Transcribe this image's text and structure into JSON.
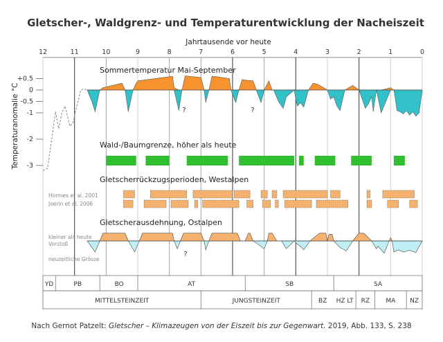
{
  "chart_data": {
    "type": "area",
    "title": "Gletscher-, Waldgrenz- und Temperaturentwicklung der Nacheiszeit",
    "xlabel": "Jahrtausende vor heute",
    "ylabel": "Temperaturanomalie °C",
    "xlim": [
      12,
      0
    ],
    "x_ticks": [
      "12",
      "11",
      "10",
      "9",
      "8",
      "7",
      "6",
      "5",
      "4",
      "3",
      "2",
      "1",
      "0"
    ],
    "y_ticks": [
      "+0.5",
      "0",
      "-0.5",
      "-1",
      "-2",
      "-3"
    ],
    "y_tick_values": [
      0.5,
      0,
      -0.5,
      -1,
      -2,
      -3
    ],
    "colors": {
      "warm": "#f7922f",
      "cold": "#33c1c9",
      "forest": "#2fbf2f",
      "retreat": "#f5b26e",
      "cold_light": "#bfeff5",
      "grid": "#bbbbbb",
      "dark": "#333333"
    },
    "panels": {
      "temperature": "Sommertemperatur Mai-September",
      "treeline": "Wald-/Baumgrenze, höher als heute",
      "retreat_west": "Gletscherrückzugsperioden, Westalpen",
      "extension_east": "Gletscherausdehnung, Ostalpen"
    },
    "retreat_sources": [
      "Hormes et al. 2001",
      "Joerin et al. 2006"
    ],
    "extension_labels": [
      "kleiner als heute",
      "Vorstoß",
      "neuzeitliche Grösse"
    ],
    "question_mark": "?",
    "temperature_series": {
      "name": "Sommertemperatur",
      "x": [
        10.6,
        10.45,
        10.35,
        10.2,
        10.1,
        9.5,
        9.4,
        9.3,
        9.15,
        9.05,
        9.0,
        7.9,
        7.85,
        7.7,
        7.6,
        7.5,
        7.0,
        6.9,
        6.85,
        6.75,
        6.65,
        6.5,
        6.1,
        6.05,
        5.9,
        5.8,
        5.7,
        5.35,
        5.25,
        5.1,
        5.0,
        4.85,
        4.75,
        4.7,
        4.55,
        4.4,
        4.3,
        4.05,
        4.0,
        3.95,
        3.85,
        3.75,
        3.6,
        3.45,
        3.3,
        3.0,
        2.9,
        2.8,
        2.7,
        2.6,
        2.45,
        2.2,
        2.0,
        1.8,
        1.7,
        1.6,
        1.55,
        1.45,
        1.3,
        1.0,
        0.9,
        0.85,
        0.8,
        0.7,
        0.6,
        0.5,
        0.4,
        0.3,
        0.2,
        0.1,
        0.0
      ],
      "y": [
        0.0,
        -0.5,
        -0.95,
        0.0,
        0.1,
        0.3,
        0.0,
        -0.95,
        0.0,
        0.3,
        0.4,
        0.6,
        0.1,
        -0.9,
        0.0,
        0.62,
        0.55,
        0.0,
        -0.55,
        0.0,
        0.6,
        0.58,
        0.5,
        0.0,
        -0.55,
        0.0,
        0.45,
        0.4,
        0.0,
        -0.55,
        0.0,
        0.4,
        0.0,
        0.0,
        -0.5,
        -0.8,
        -0.3,
        0.0,
        -0.4,
        -0.7,
        -0.55,
        -0.75,
        0.0,
        0.3,
        0.25,
        0.0,
        -0.4,
        -0.3,
        -0.7,
        -0.9,
        0.0,
        0.2,
        0.0,
        -0.8,
        -0.6,
        -0.3,
        -0.95,
        0.0,
        -1.0,
        0.1,
        0.0,
        -0.4,
        -0.9,
        -0.95,
        -1.05,
        -0.9,
        -1.1,
        -0.95,
        -1.15,
        -1.0,
        0.0
      ]
    },
    "lateglacial_dashed": {
      "x": [
        12.0,
        11.85,
        11.7,
        11.6,
        11.5,
        11.4,
        11.3,
        11.15,
        11.05,
        10.95,
        10.8,
        10.7,
        10.6
      ],
      "y": [
        -3.2,
        -3.1,
        -1.8,
        -0.95,
        -1.6,
        -1.0,
        -0.7,
        -1.5,
        -1.4,
        -0.85,
        0.0,
        0.05,
        0.0
      ]
    },
    "treeline_periods": [
      [
        10.0,
        9.05
      ],
      [
        8.75,
        8.0
      ],
      [
        7.45,
        6.15
      ],
      [
        5.8,
        4.05
      ],
      [
        3.9,
        3.75
      ],
      [
        3.4,
        2.75
      ],
      [
        2.25,
        1.6
      ],
      [
        0.9,
        0.55
      ]
    ],
    "retreat_periods_row1": [
      [
        9.45,
        9.1
      ],
      [
        8.6,
        7.45
      ],
      [
        7.25,
        6.0
      ],
      [
        5.95,
        5.45
      ],
      [
        5.1,
        4.9
      ],
      [
        4.75,
        4.6
      ],
      [
        4.4,
        3.0
      ],
      [
        2.9,
        2.6
      ],
      [
        1.75,
        1.65
      ],
      [
        1.25,
        0.25
      ]
    ],
    "retreat_periods_row2": [
      [
        9.45,
        9.15
      ],
      [
        8.8,
        8.1
      ],
      [
        7.95,
        7.4
      ],
      [
        7.2,
        7.1
      ],
      [
        6.95,
        5.8
      ],
      [
        5.55,
        5.35
      ],
      [
        5.05,
        4.8
      ],
      [
        4.65,
        4.55
      ],
      [
        4.35,
        3.5
      ],
      [
        3.35,
        2.35
      ],
      [
        1.75,
        1.6
      ],
      [
        1.1,
        0.75
      ],
      [
        0.4,
        0.15
      ]
    ],
    "extension_series": {
      "x": [
        10.6,
        10.45,
        10.35,
        10.2,
        10.1,
        9.4,
        9.3,
        9.1,
        8.95,
        8.85,
        8.75,
        7.9,
        7.85,
        7.75,
        7.65,
        7.55,
        7.0,
        6.9,
        6.85,
        6.75,
        6.65,
        5.85,
        5.75,
        5.6,
        5.5,
        5.45,
        5.35,
        5.0,
        4.9,
        4.85,
        4.75,
        4.6,
        4.45,
        4.3,
        4.05,
        3.95,
        3.85,
        3.75,
        3.55,
        3.25,
        3.05,
        3.0,
        2.95,
        2.85,
        2.8,
        2.6,
        2.4,
        2.2,
        2.0,
        1.85,
        1.6,
        1.45,
        1.4,
        1.2,
        1.05,
        1.0,
        0.95,
        0.9,
        0.75,
        0.6,
        0.4,
        0.2,
        0.0
      ],
      "y": [
        0.0,
        -0.6,
        -1.0,
        0.0,
        0.7,
        0.7,
        0.0,
        -1.0,
        0.0,
        0.7,
        0.7,
        0.7,
        0.0,
        -0.7,
        0.0,
        0.7,
        0.7,
        0.0,
        -0.8,
        0.0,
        0.7,
        0.7,
        0.0,
        0.0,
        0.7,
        0.7,
        0.0,
        -0.7,
        0.0,
        0.7,
        0.7,
        0.0,
        0.0,
        -0.7,
        0.0,
        -0.3,
        -0.5,
        -0.8,
        0.0,
        0.7,
        0.7,
        0.0,
        0.6,
        0.6,
        0.0,
        -0.6,
        -0.9,
        0.0,
        0.7,
        0.7,
        0.0,
        -0.7,
        -0.5,
        -1.1,
        0.0,
        0.3,
        0.0,
        -1.0,
        -0.8,
        -1.0,
        -0.85,
        -1.05,
        0.0
      ]
    },
    "biozones": [
      {
        "label": "YD",
        "from": 12.0,
        "to": 11.6
      },
      {
        "label": "PB",
        "from": 11.6,
        "to": 10.2
      },
      {
        "label": "BO",
        "from": 10.2,
        "to": 9.0
      },
      {
        "label": "AT",
        "from": 9.0,
        "to": 5.6
      },
      {
        "label": "SB",
        "from": 5.6,
        "to": 2.8
      },
      {
        "label": "SA",
        "from": 2.8,
        "to": 0.0
      }
    ],
    "culture_periods": [
      {
        "label": "MITTELSTEINZEIT",
        "from": 12.0,
        "to": 7.0
      },
      {
        "label": "JUNGSTEINZEIT",
        "from": 7.0,
        "to": 3.5
      },
      {
        "label": "BZ",
        "from": 3.5,
        "to": 2.8
      },
      {
        "label": "HZ LT",
        "from": 2.8,
        "to": 2.1
      },
      {
        "label": "RZ",
        "from": 2.1,
        "to": 1.5
      },
      {
        "label": "MA",
        "from": 1.5,
        "to": 0.5
      },
      {
        "label": "NZ",
        "from": 0.5,
        "to": 0.0
      }
    ]
  },
  "caption": {
    "prefix": "Nach Gernot Patzelt: ",
    "italic": "Gletscher – Klimazeugen von der Eiszeit bis zur Gegenwart.",
    "suffix": " 2019, Abb. 133, S. 238"
  }
}
